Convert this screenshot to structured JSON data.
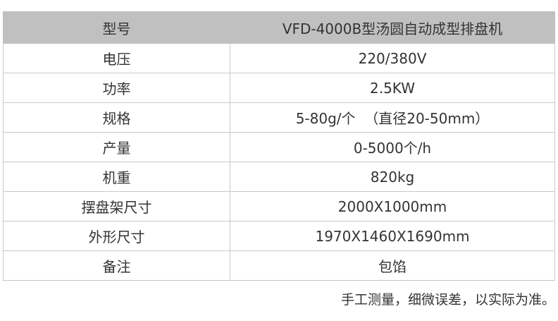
{
  "header": {
    "key": "型号",
    "value": "VFD-4000B型汤圆自动成型排盘机"
  },
  "rows": [
    {
      "key": "电压",
      "value": "220/380V"
    },
    {
      "key": "功率",
      "value": "2.5KW"
    },
    {
      "key": "规格",
      "value": "5-80g/个  （直径20-50mm）"
    },
    {
      "key": "产量",
      "value": "0-5000个/h"
    },
    {
      "key": "机重",
      "value": "820kg"
    },
    {
      "key": "摆盘架尺寸",
      "value": "2000X1000mm"
    },
    {
      "key": "外形尺寸",
      "value": "1970X1460X1690mm"
    },
    {
      "key": "备注",
      "value": "包馅"
    }
  ],
  "note": "手工测量，细微误差，以实际为准。"
}
